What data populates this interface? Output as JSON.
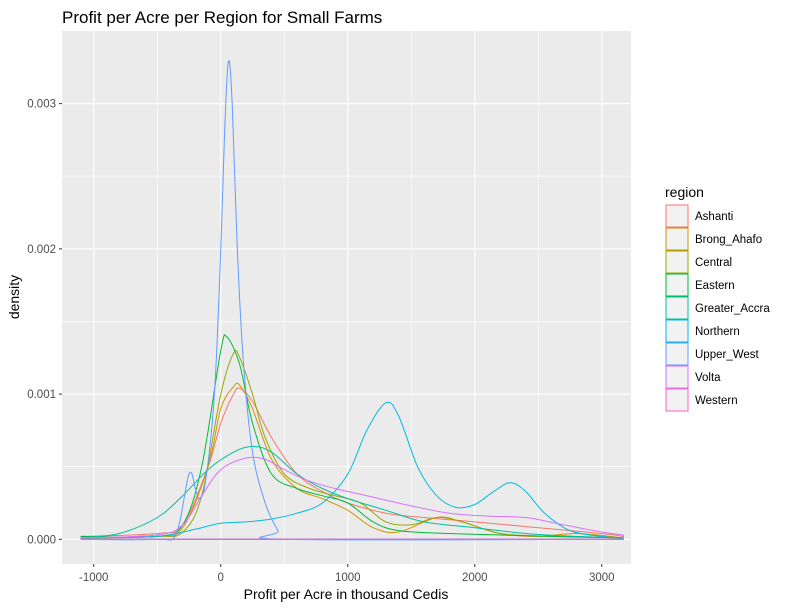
{
  "chart_data": {
    "type": "line",
    "title": "Profit per Acre per Region for Small Farms",
    "xlabel": "Profit per Acre in thousand Cedis",
    "ylabel": "density",
    "xlim": [
      -1250,
      3230
    ],
    "ylim": [
      -0.00017,
      0.0035
    ],
    "x_ticks": [
      -1000,
      0,
      1000,
      2000,
      3000
    ],
    "x_tick_labels": [
      "-1000",
      "0",
      "1000",
      "2000",
      "3000"
    ],
    "y_ticks": [
      0.0,
      0.001,
      0.002,
      0.003
    ],
    "y_tick_labels": [
      "0.000",
      "0.001",
      "0.002",
      "0.003"
    ],
    "grid": true,
    "legend": {
      "title": "region",
      "position": "right"
    },
    "series": [
      {
        "name": "Ashanti",
        "color": "#F8766D",
        "points": [
          [
            -1100,
            2e-05
          ],
          [
            -500,
            4e-05
          ],
          [
            -300,
            0.0001
          ],
          [
            -100,
            0.0005
          ],
          [
            0,
            0.0008
          ],
          [
            100,
            0.001
          ],
          [
            150,
            0.00104
          ],
          [
            250,
            0.00095
          ],
          [
            400,
            0.0007
          ],
          [
            600,
            0.00045
          ],
          [
            800,
            0.00033
          ],
          [
            1000,
            0.00025
          ],
          [
            1300,
            0.00018
          ],
          [
            1600,
            0.00015
          ],
          [
            2000,
            0.00012
          ],
          [
            2500,
            8e-05
          ],
          [
            3000,
            4e-05
          ],
          [
            3170,
            2e-05
          ]
        ]
      },
      {
        "name": "Brong_Ahafo",
        "color": "#D39200",
        "points": [
          [
            -1100,
            1e-05
          ],
          [
            -500,
            2e-05
          ],
          [
            -300,
            8e-05
          ],
          [
            -100,
            0.0005
          ],
          [
            0,
            0.0009
          ],
          [
            100,
            0.00105
          ],
          [
            150,
            0.00106
          ],
          [
            250,
            0.0009
          ],
          [
            400,
            0.00055
          ],
          [
            600,
            0.00035
          ],
          [
            800,
            0.00028
          ],
          [
            1000,
            0.0002
          ],
          [
            1200,
            8e-05
          ],
          [
            1400,
            5e-05
          ],
          [
            1700,
            0.00015
          ],
          [
            1900,
            0.00012
          ],
          [
            2200,
            4e-05
          ],
          [
            2500,
            2e-05
          ],
          [
            2800,
            4e-05
          ],
          [
            3170,
            1e-05
          ]
        ]
      },
      {
        "name": "Central",
        "color": "#93AA00",
        "points": [
          [
            -1100,
            1e-05
          ],
          [
            -500,
            2e-05
          ],
          [
            -300,
            5e-05
          ],
          [
            -150,
            0.0003
          ],
          [
            0,
            0.001
          ],
          [
            100,
            0.00128
          ],
          [
            150,
            0.00125
          ],
          [
            250,
            0.001
          ],
          [
            350,
            0.0007
          ],
          [
            500,
            0.00045
          ],
          [
            700,
            0.00035
          ],
          [
            900,
            0.0003
          ],
          [
            1100,
            0.00025
          ],
          [
            1300,
            0.00012
          ],
          [
            1500,
            0.0001
          ],
          [
            1700,
            0.00015
          ],
          [
            1900,
            0.00012
          ],
          [
            2200,
            4e-05
          ],
          [
            2600,
            2e-05
          ],
          [
            3170,
            1e-05
          ]
        ]
      },
      {
        "name": "Eastern",
        "color": "#00BA38",
        "points": [
          [
            -1100,
            2e-05
          ],
          [
            -500,
            2e-05
          ],
          [
            -300,
            0.0001
          ],
          [
            -150,
            0.0005
          ],
          [
            0,
            0.0013
          ],
          [
            50,
            0.00139
          ],
          [
            150,
            0.0012
          ],
          [
            250,
            0.0008
          ],
          [
            400,
            0.00045
          ],
          [
            600,
            0.00035
          ],
          [
            800,
            0.0003
          ],
          [
            1000,
            0.00025
          ],
          [
            1200,
            0.00012
          ],
          [
            1400,
            6e-05
          ],
          [
            1800,
            4e-05
          ],
          [
            2200,
            3e-05
          ],
          [
            2600,
            2e-05
          ],
          [
            3170,
            1e-05
          ]
        ]
      },
      {
        "name": "Greater_Accra",
        "color": "#00C19F",
        "points": [
          [
            -1100,
            1e-05
          ],
          [
            -800,
            4e-05
          ],
          [
            -500,
            0.00015
          ],
          [
            -300,
            0.0003
          ],
          [
            -100,
            0.00048
          ],
          [
            100,
            0.0006
          ],
          [
            250,
            0.00064
          ],
          [
            400,
            0.0006
          ],
          [
            600,
            0.00045
          ],
          [
            800,
            0.00035
          ],
          [
            1000,
            0.00028
          ],
          [
            1300,
            0.0002
          ],
          [
            1600,
            0.00012
          ],
          [
            2000,
            8e-05
          ],
          [
            2400,
            4e-05
          ],
          [
            2800,
            2e-05
          ],
          [
            3170,
            1e-05
          ]
        ]
      },
      {
        "name": "Northern",
        "color": "#00B9E3",
        "points": [
          [
            -1100,
            1e-05
          ],
          [
            -500,
            2e-05
          ],
          [
            -200,
            7e-05
          ],
          [
            0,
            0.00011
          ],
          [
            200,
            0.00012
          ],
          [
            400,
            0.00014
          ],
          [
            600,
            0.00018
          ],
          [
            800,
            0.00025
          ],
          [
            1000,
            0.00045
          ],
          [
            1150,
            0.00075
          ],
          [
            1300,
            0.00094
          ],
          [
            1400,
            0.00085
          ],
          [
            1550,
            0.0005
          ],
          [
            1700,
            0.0003
          ],
          [
            1850,
            0.00022
          ],
          [
            2000,
            0.00024
          ],
          [
            2150,
            0.00033
          ],
          [
            2280,
            0.00039
          ],
          [
            2400,
            0.00033
          ],
          [
            2550,
            0.00018
          ],
          [
            2750,
            6e-05
          ],
          [
            3000,
            2e-05
          ],
          [
            3170,
            1e-05
          ]
        ]
      },
      {
        "name": "Upper_West",
        "color": "#619CFF",
        "points": [
          [
            -1100,
            0.0
          ],
          [
            -500,
            0.0
          ],
          [
            -350,
            4e-05
          ],
          [
            -250,
            0.00045
          ],
          [
            -200,
            0.00035
          ],
          [
            -170,
            0.00028
          ],
          [
            -120,
            0.0004
          ],
          [
            -50,
            0.001
          ],
          [
            0,
            0.002
          ],
          [
            30,
            0.0028
          ],
          [
            60,
            0.00329
          ],
          [
            90,
            0.003
          ],
          [
            130,
            0.002
          ],
          [
            180,
            0.0012
          ],
          [
            250,
            0.0006
          ],
          [
            350,
            0.00025
          ],
          [
            450,
            6e-05
          ],
          [
            520,
            0.0
          ],
          [
            3170,
            0.0
          ]
        ]
      },
      {
        "name": "Volta",
        "color": "#DB72FB",
        "points": [
          [
            -1100,
            1e-05
          ],
          [
            -500,
            3e-05
          ],
          [
            -300,
            0.0001
          ],
          [
            -150,
            0.0003
          ],
          [
            0,
            0.00048
          ],
          [
            200,
            0.00056
          ],
          [
            350,
            0.00055
          ],
          [
            500,
            0.00048
          ],
          [
            700,
            0.0004
          ],
          [
            900,
            0.00035
          ],
          [
            1100,
            0.00031
          ],
          [
            1300,
            0.00027
          ],
          [
            1500,
            0.00023
          ],
          [
            1800,
            0.00018
          ],
          [
            2100,
            0.00016
          ],
          [
            2400,
            0.00015
          ],
          [
            2700,
            0.0001
          ],
          [
            3000,
            5e-05
          ],
          [
            3170,
            3e-05
          ]
        ]
      },
      {
        "name": "Western",
        "color": "#FF61C3",
        "points": [
          [
            -1100,
            0.0
          ],
          [
            -500,
            0.0
          ],
          [
            0,
            0.0
          ],
          [
            1000,
            0.0
          ],
          [
            2000,
            0.0
          ],
          [
            3170,
            0.0
          ]
        ]
      }
    ]
  }
}
